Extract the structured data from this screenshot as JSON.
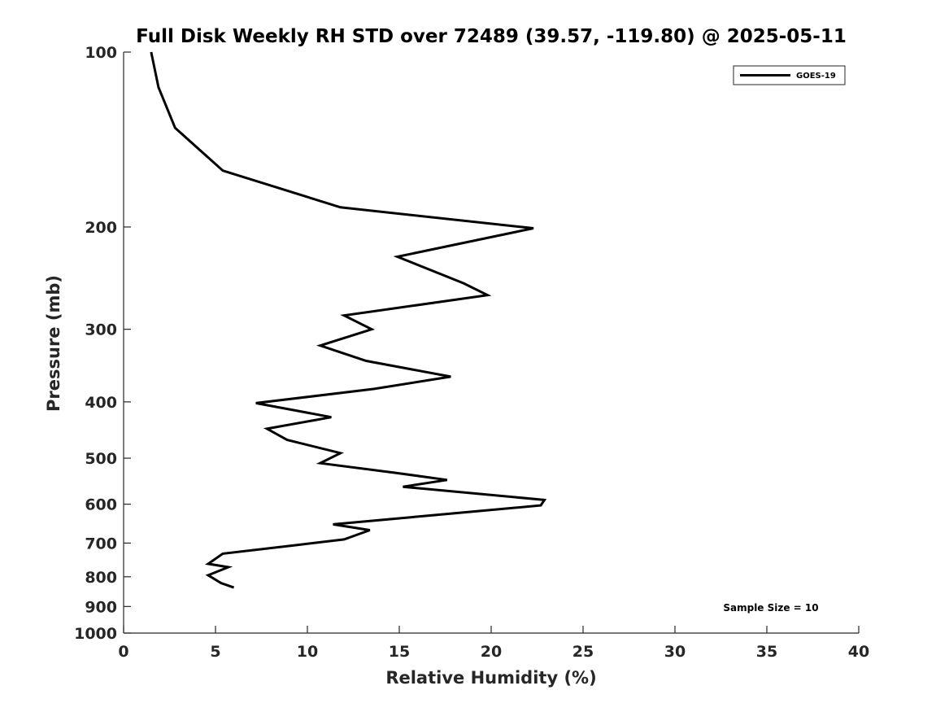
{
  "chart_data": {
    "type": "line",
    "title": "Full Disk Weekly RH STD over 72489 (39.57, -119.80) @ 2025-05-11",
    "xlabel": "Relative Humidity (%)",
    "ylabel": "Pressure (mb)",
    "xlim": [
      0,
      40
    ],
    "ylim": [
      100,
      1000
    ],
    "y_scale": "log",
    "y_reversed": true,
    "x_ticks": [
      "0",
      "5",
      "10",
      "15",
      "20",
      "25",
      "30",
      "35",
      "40"
    ],
    "x_tick_values": [
      0,
      5,
      10,
      15,
      20,
      25,
      30,
      35,
      40
    ],
    "y_ticks": [
      "100",
      "200",
      "300",
      "400",
      "500",
      "600",
      "700",
      "800",
      "900",
      "1000"
    ],
    "y_tick_values": [
      100,
      200,
      300,
      400,
      500,
      600,
      700,
      800,
      900,
      1000
    ],
    "grid": false,
    "legend_position": "top-right",
    "annotation": "Sample Size = 10",
    "series": [
      {
        "name": "GOES-19",
        "color": "#000000",
        "points": [
          [
            1.5,
            100
          ],
          [
            1.9,
            115
          ],
          [
            2.8,
            135
          ],
          [
            5.4,
            160
          ],
          [
            11.8,
            185
          ],
          [
            22.3,
            201
          ],
          [
            14.9,
            225
          ],
          [
            18.5,
            250
          ],
          [
            19.8,
            262
          ],
          [
            12.0,
            284
          ],
          [
            13.5,
            300
          ],
          [
            10.7,
            320
          ],
          [
            13.2,
            340
          ],
          [
            17.8,
            362
          ],
          [
            13.6,
            380
          ],
          [
            7.2,
            402
          ],
          [
            11.3,
            425
          ],
          [
            7.8,
            445
          ],
          [
            8.9,
            465
          ],
          [
            11.8,
            490
          ],
          [
            10.7,
            510
          ],
          [
            14.8,
            530
          ],
          [
            17.6,
            545
          ],
          [
            15.2,
            560
          ],
          [
            22.9,
            590
          ],
          [
            22.7,
            603
          ],
          [
            11.4,
            650
          ],
          [
            13.4,
            665
          ],
          [
            12.0,
            690
          ],
          [
            9.5,
            705
          ],
          [
            5.4,
            730
          ],
          [
            4.6,
            760
          ],
          [
            5.7,
            770
          ],
          [
            4.6,
            795
          ],
          [
            5.3,
            820
          ],
          [
            6.0,
            835
          ]
        ]
      }
    ]
  }
}
